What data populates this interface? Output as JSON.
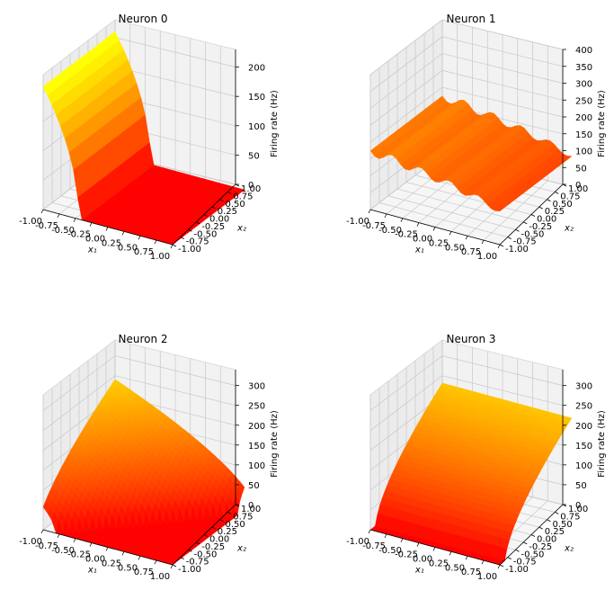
{
  "colors": {
    "surface_low": "#ff0000",
    "surface_high": "#ffff00",
    "pane_left": "#ececec",
    "pane_right": "#f2f2f2",
    "pane_floor": "#f6f6f6"
  },
  "chart_data": [
    {
      "type": "surface",
      "title": "Neuron 0",
      "xlabel": "x₁",
      "ylabel": "x₂",
      "zlabel": "Firing rate (Hz)",
      "xlim": [
        -1,
        1
      ],
      "ylim": [
        -1,
        1
      ],
      "zlim": [
        0,
        230
      ],
      "xticks": [
        "-1.00",
        "-0.75",
        "-0.50",
        "-0.25",
        "0.00",
        "0.25",
        "0.50",
        "0.75",
        "1.00"
      ],
      "yticks": [
        "-1.00",
        "-0.75",
        "-0.50",
        "-0.25",
        "0.00",
        "0.25",
        "0.50",
        "0.75",
        "1.00"
      ],
      "zticks": [
        0,
        50,
        100,
        150,
        200
      ],
      "surface": {
        "model": "rectified",
        "a": -2.0,
        "b": 0.0,
        "c": -0.9,
        "gain": 200,
        "exponent": 0.5,
        "ripple": 0
      }
    },
    {
      "type": "surface",
      "title": "Neuron 1",
      "xlabel": "x₁",
      "ylabel": "x₂",
      "zlabel": "Firing rate (Hz)",
      "xlim": [
        -1,
        1
      ],
      "ylim": [
        -1,
        1
      ],
      "zlim": [
        0,
        400
      ],
      "xticks": [
        "-1.00",
        "-0.75",
        "-0.50",
        "-0.25",
        "0.00",
        "0.25",
        "0.50",
        "0.75",
        "1.00"
      ],
      "yticks": [
        "-1.00",
        "-0.75",
        "-0.50",
        "-0.25",
        "0.00",
        "0.25",
        "0.50",
        "0.75",
        "1.00"
      ],
      "zticks": [
        0,
        50,
        100,
        150,
        200,
        250,
        300,
        350,
        400
      ],
      "surface": {
        "model": "rectified",
        "a": -0.2,
        "b": 0.0,
        "c": 0.3,
        "gain": 240,
        "exponent": 0.35,
        "ripple": 0.15
      }
    },
    {
      "type": "surface",
      "title": "Neuron 2",
      "xlabel": "x₁",
      "ylabel": "x₂",
      "zlabel": "Firing rate (Hz)",
      "xlim": [
        -1,
        1
      ],
      "ylim": [
        -1,
        1
      ],
      "zlim": [
        0,
        340
      ],
      "xticks": [
        "-1.00",
        "-0.75",
        "-0.50",
        "-0.25",
        "0.00",
        "0.25",
        "0.50",
        "0.75",
        "1.00"
      ],
      "yticks": [
        "-1.00",
        "-0.75",
        "-0.50",
        "-0.25",
        "0.00",
        "0.25",
        "0.50",
        "0.75",
        "1.00"
      ],
      "zticks": [
        0,
        50,
        100,
        150,
        200,
        250,
        300
      ],
      "surface": {
        "model": "rectified",
        "a": -1.0,
        "b": 1.0,
        "c": 0.2,
        "gain": 150,
        "exponent": 0.6,
        "ripple": 0
      }
    },
    {
      "type": "surface",
      "title": "Neuron 3",
      "xlabel": "x₁",
      "ylabel": "x₂",
      "zlabel": "Firing rate (Hz)",
      "xlim": [
        -1,
        1
      ],
      "ylim": [
        -1,
        1
      ],
      "zlim": [
        0,
        340
      ],
      "xticks": [
        "-1.00",
        "-0.75",
        "-0.50",
        "-0.25",
        "0.00",
        "0.25",
        "0.50",
        "0.75",
        "1.00"
      ],
      "yticks": [
        "-1.00",
        "-0.75",
        "-0.50",
        "-0.25",
        "0.00",
        "0.25",
        "0.50",
        "0.75",
        "1.00"
      ],
      "zticks": [
        0,
        50,
        100,
        150,
        200,
        250,
        300
      ],
      "surface": {
        "model": "rectified",
        "a": 0.0,
        "b": 1.0,
        "c": 0.85,
        "gain": 160,
        "exponent": 0.6,
        "ripple": 0
      }
    }
  ]
}
